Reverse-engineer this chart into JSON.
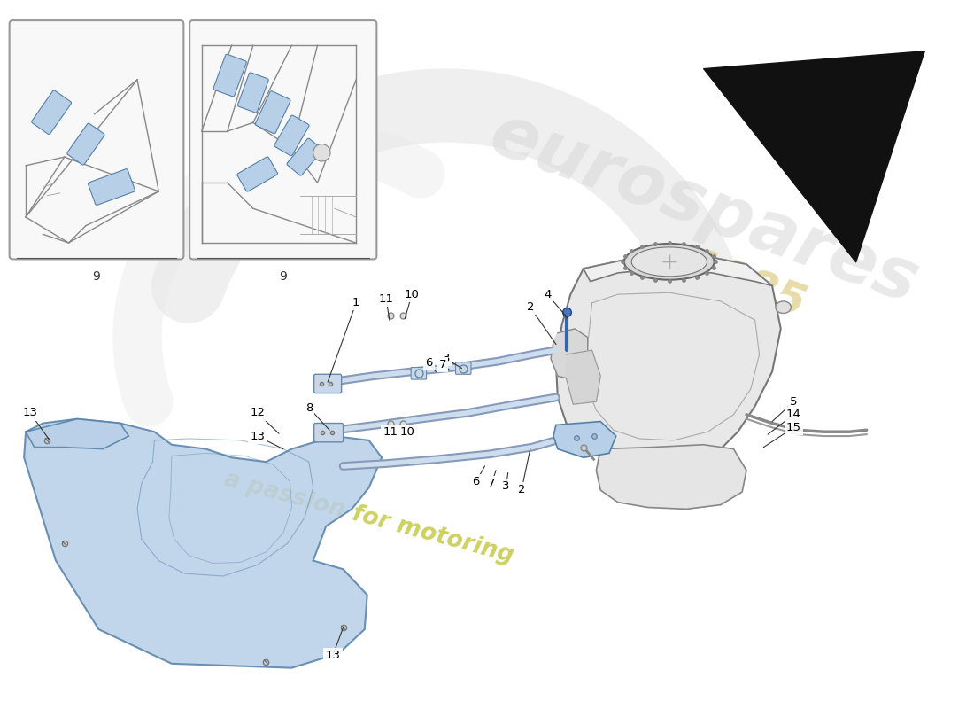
{
  "background_color": "#ffffff",
  "guard_fill": "#b8cfe8",
  "guard_edge": "#5580a8",
  "bracket_color": "#8899bb",
  "tank_fill": "#e8e8e8",
  "tank_edge": "#666666",
  "line_color": "#333333",
  "number_color": "#000000",
  "inset_bg": "#f8f8f8",
  "inset_border": "#999999",
  "watermark_gray": "#cccccc",
  "watermark_yellow": "#d4c060",
  "passion_yellow": "#c8cc50",
  "arrow_color": "#111111"
}
